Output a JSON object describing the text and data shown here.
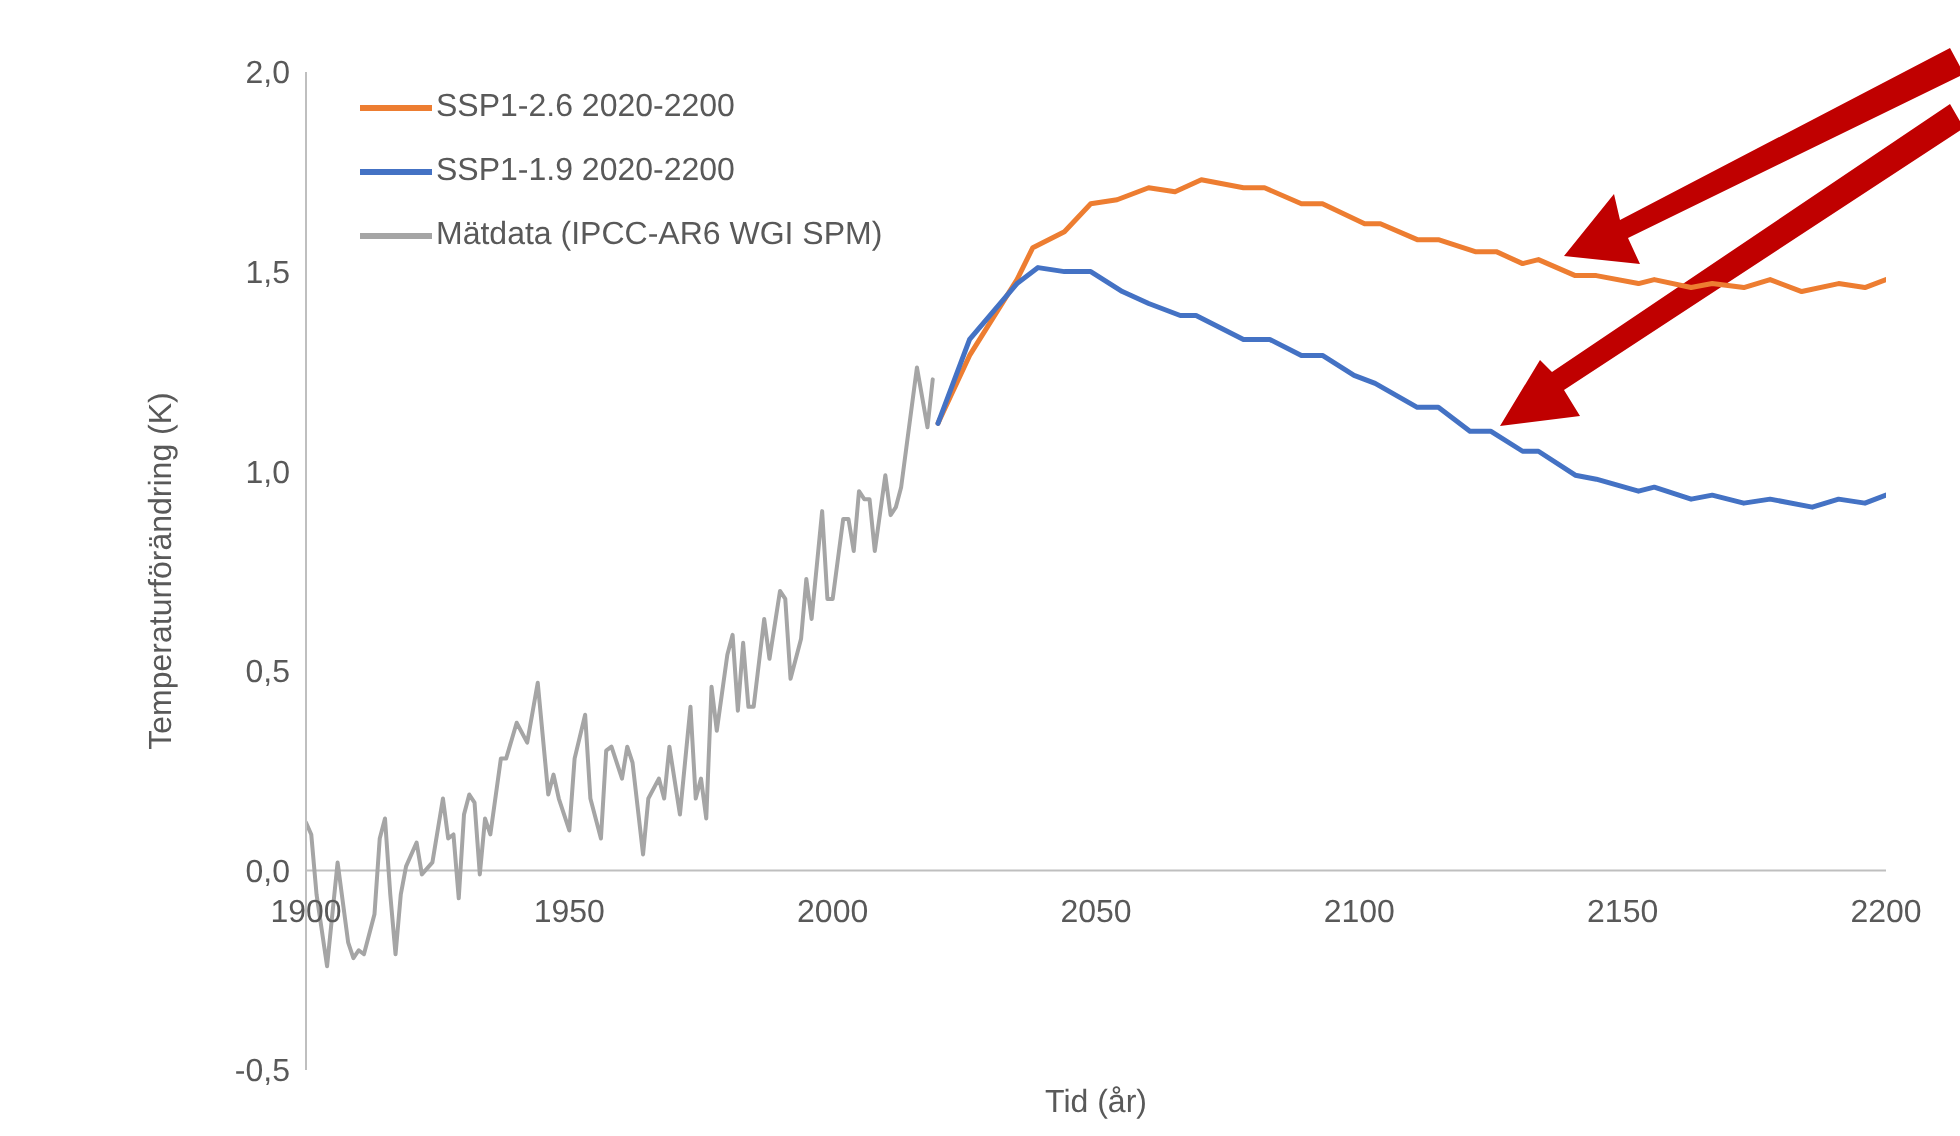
{
  "chart_data": {
    "type": "line",
    "xlabel": "Tid (år)",
    "ylabel": "Temperaturförändring (K)",
    "xlim": [
      1900,
      2200
    ],
    "xticks": [
      1900,
      1950,
      2000,
      2050,
      2100,
      2150,
      2200
    ],
    "ylim": [
      -0.5,
      2.0
    ],
    "yticks": [
      {
        "value": -0.5,
        "label": "-0,5"
      },
      {
        "value": 0,
        "label": "0,0"
      },
      {
        "value": 0.5,
        "label": "0,5"
      },
      {
        "value": 1.0,
        "label": "1,0"
      },
      {
        "value": 1.5,
        "label": "1,5"
      },
      {
        "value": 2.0,
        "label": "2,0"
      }
    ],
    "grid": false,
    "legend": "top left",
    "marker": "none",
    "line_style": "solid",
    "series": [
      {
        "name": "SSP1-2.6 2020-2200",
        "color": "#ed7d31",
        "x": [
          2020,
          2026,
          2035,
          2038,
          2044,
          2049,
          2054,
          2060,
          2065,
          2070,
          2078,
          2082,
          2089,
          2093,
          2101,
          2104,
          2111,
          2115,
          2122,
          2126,
          2131,
          2134,
          2141,
          2145,
          2153,
          2156,
          2163,
          2167,
          2173,
          2178,
          2184,
          2191,
          2196,
          2200
        ],
        "values": [
          1.12,
          1.29,
          1.48,
          1.56,
          1.6,
          1.67,
          1.68,
          1.71,
          1.7,
          1.73,
          1.71,
          1.71,
          1.67,
          1.67,
          1.62,
          1.62,
          1.58,
          1.58,
          1.55,
          1.55,
          1.52,
          1.53,
          1.49,
          1.49,
          1.47,
          1.48,
          1.46,
          1.47,
          1.46,
          1.48,
          1.45,
          1.47,
          1.46,
          1.48
        ]
      },
      {
        "name": "SSP1-1.9 2020-2200",
        "color": "#4472c4",
        "x": [
          2020,
          2026,
          2035,
          2039,
          2044,
          2049,
          2055,
          2060,
          2066,
          2069,
          2078,
          2083,
          2089,
          2093,
          2099,
          2103,
          2111,
          2115,
          2121,
          2125,
          2131,
          2134,
          2141,
          2145,
          2153,
          2156,
          2163,
          2167,
          2173,
          2178,
          2186,
          2191,
          2196,
          2200
        ],
        "values": [
          1.12,
          1.33,
          1.47,
          1.51,
          1.5,
          1.5,
          1.45,
          1.42,
          1.39,
          1.39,
          1.33,
          1.33,
          1.29,
          1.29,
          1.24,
          1.22,
          1.16,
          1.16,
          1.1,
          1.1,
          1.05,
          1.05,
          0.99,
          0.98,
          0.95,
          0.96,
          0.93,
          0.94,
          0.92,
          0.93,
          0.91,
          0.93,
          0.92,
          0.94
        ]
      },
      {
        "name": "Mätdata (IPCC-AR6 WGI SPM)",
        "color": "#a5a5a5",
        "x": [
          1900,
          1901,
          1902,
          1904,
          1906,
          1908,
          1909,
          1910,
          1911,
          1913,
          1914,
          1915,
          1916,
          1917,
          1918,
          1919,
          1921,
          1922,
          1924,
          1926,
          1927,
          1928,
          1929,
          1930,
          1931,
          1932,
          1933,
          1934,
          1935,
          1937,
          1938,
          1940,
          1942,
          1944,
          1946,
          1947,
          1948,
          1950,
          1951,
          1953,
          1954,
          1956,
          1957,
          1958,
          1960,
          1961,
          1962,
          1964,
          1965,
          1967,
          1968,
          1969,
          1971,
          1973,
          1974,
          1975,
          1976,
          1977,
          1978,
          1980,
          1981,
          1982,
          1983,
          1984,
          1985,
          1987,
          1988,
          1990,
          1991,
          1992,
          1994,
          1995,
          1996,
          1998,
          1999,
          2000,
          2002,
          2003,
          2004,
          2005,
          2006,
          2007,
          2008,
          2010,
          2011,
          2012,
          2013,
          2014,
          2016,
          2018,
          2019
        ],
        "values": [
          0.12,
          0.09,
          -0.06,
          -0.24,
          0.02,
          -0.18,
          -0.22,
          -0.2,
          -0.21,
          -0.11,
          0.08,
          0.13,
          -0.06,
          -0.21,
          -0.06,
          0.01,
          0.07,
          -0.01,
          0.02,
          0.18,
          0.08,
          0.09,
          -0.07,
          0.14,
          0.19,
          0.17,
          -0.01,
          0.13,
          0.09,
          0.28,
          0.28,
          0.37,
          0.32,
          0.47,
          0.19,
          0.24,
          0.18,
          0.1,
          0.28,
          0.39,
          0.18,
          0.08,
          0.3,
          0.31,
          0.23,
          0.31,
          0.27,
          0.04,
          0.18,
          0.23,
          0.18,
          0.31,
          0.14,
          0.41,
          0.18,
          0.23,
          0.13,
          0.46,
          0.35,
          0.54,
          0.59,
          0.4,
          0.57,
          0.41,
          0.41,
          0.63,
          0.53,
          0.7,
          0.68,
          0.48,
          0.58,
          0.73,
          0.63,
          0.9,
          0.68,
          0.68,
          0.88,
          0.88,
          0.8,
          0.95,
          0.93,
          0.93,
          0.8,
          0.99,
          0.89,
          0.91,
          0.96,
          1.06,
          1.26,
          1.11,
          1.23
        ]
      }
    ]
  }
}
